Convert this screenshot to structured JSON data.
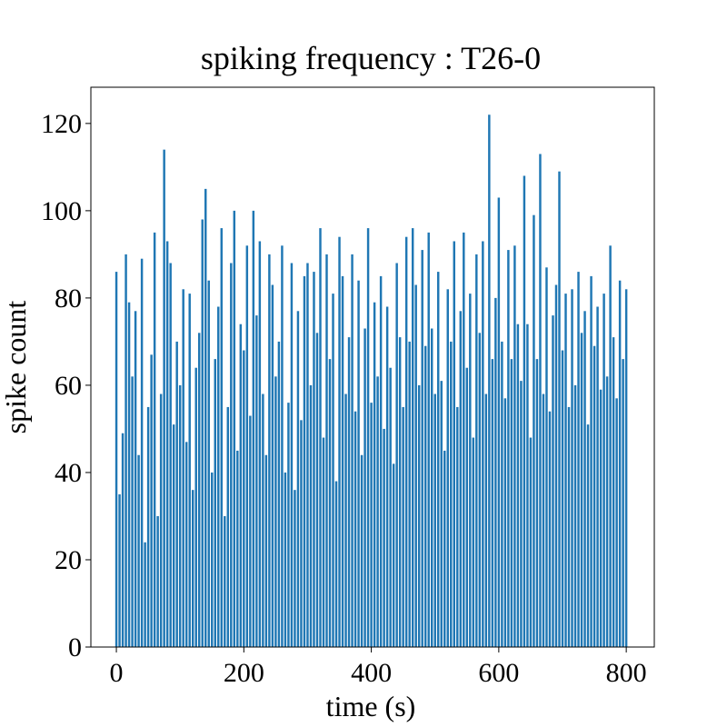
{
  "chart_data": {
    "type": "bar",
    "title": "spiking frequency : T26-0",
    "xlabel": "time (s)",
    "ylabel": "spike count",
    "color": "#1f77b4",
    "x": [
      0,
      5,
      10,
      15,
      20,
      25,
      30,
      35,
      40,
      45,
      50,
      55,
      60,
      65,
      70,
      75,
      80,
      85,
      90,
      95,
      100,
      105,
      110,
      115,
      120,
      125,
      130,
      135,
      140,
      145,
      150,
      155,
      160,
      165,
      170,
      175,
      180,
      185,
      190,
      195,
      200,
      205,
      210,
      215,
      220,
      225,
      230,
      235,
      240,
      245,
      250,
      255,
      260,
      265,
      270,
      275,
      280,
      285,
      290,
      295,
      300,
      305,
      310,
      315,
      320,
      325,
      330,
      335,
      340,
      345,
      350,
      355,
      360,
      365,
      370,
      375,
      380,
      385,
      390,
      395,
      400,
      405,
      410,
      415,
      420,
      425,
      430,
      435,
      440,
      445,
      450,
      455,
      460,
      465,
      470,
      475,
      480,
      485,
      490,
      495,
      500,
      505,
      510,
      515,
      520,
      525,
      530,
      535,
      540,
      545,
      550,
      555,
      560,
      565,
      570,
      575,
      580,
      585,
      590,
      595,
      600,
      605,
      610,
      615,
      620,
      625,
      630,
      635,
      640,
      645,
      650,
      655,
      660,
      665,
      670,
      675,
      680,
      685,
      690,
      695,
      700,
      705,
      710,
      715,
      720,
      725,
      730,
      735,
      740,
      745,
      750,
      755,
      760,
      765,
      770,
      775,
      780,
      785,
      790,
      795,
      800
    ],
    "values": [
      86,
      35,
      49,
      90,
      79,
      62,
      77,
      44,
      89,
      24,
      55,
      67,
      95,
      30,
      58,
      114,
      93,
      88,
      51,
      70,
      60,
      82,
      47,
      81,
      36,
      64,
      72,
      98,
      105,
      84,
      40,
      66,
      78,
      96,
      30,
      55,
      88,
      100,
      45,
      74,
      68,
      92,
      53,
      100,
      76,
      93,
      58,
      44,
      90,
      83,
      62,
      70,
      92,
      40,
      56,
      88,
      36,
      77,
      52,
      85,
      88,
      60,
      86,
      72,
      96,
      48,
      90,
      66,
      81,
      38,
      94,
      85,
      58,
      71,
      90,
      54,
      84,
      44,
      73,
      96,
      56,
      79,
      62,
      85,
      50,
      78,
      64,
      42,
      88,
      71,
      55,
      94,
      70,
      96,
      83,
      60,
      91,
      69,
      95,
      73,
      58,
      86,
      61,
      45,
      82,
      70,
      93,
      55,
      77,
      95,
      64,
      81,
      48,
      90,
      72,
      93,
      58,
      122,
      66,
      80,
      103,
      70,
      57,
      91,
      66,
      92,
      74,
      61,
      108,
      74,
      48,
      99,
      66,
      113,
      58,
      87,
      54,
      76,
      83,
      109,
      68,
      81,
      55,
      82,
      60,
      86,
      72,
      77,
      51,
      85,
      69,
      78,
      59,
      81,
      62,
      92,
      71,
      57,
      84,
      66,
      82
    ],
    "xlim": [
      -40,
      844
    ],
    "ylim": [
      0,
      128.3
    ],
    "xticks": [
      0,
      200,
      400,
      600,
      800
    ],
    "yticks": [
      0,
      20,
      40,
      60,
      80,
      100,
      120
    ]
  }
}
